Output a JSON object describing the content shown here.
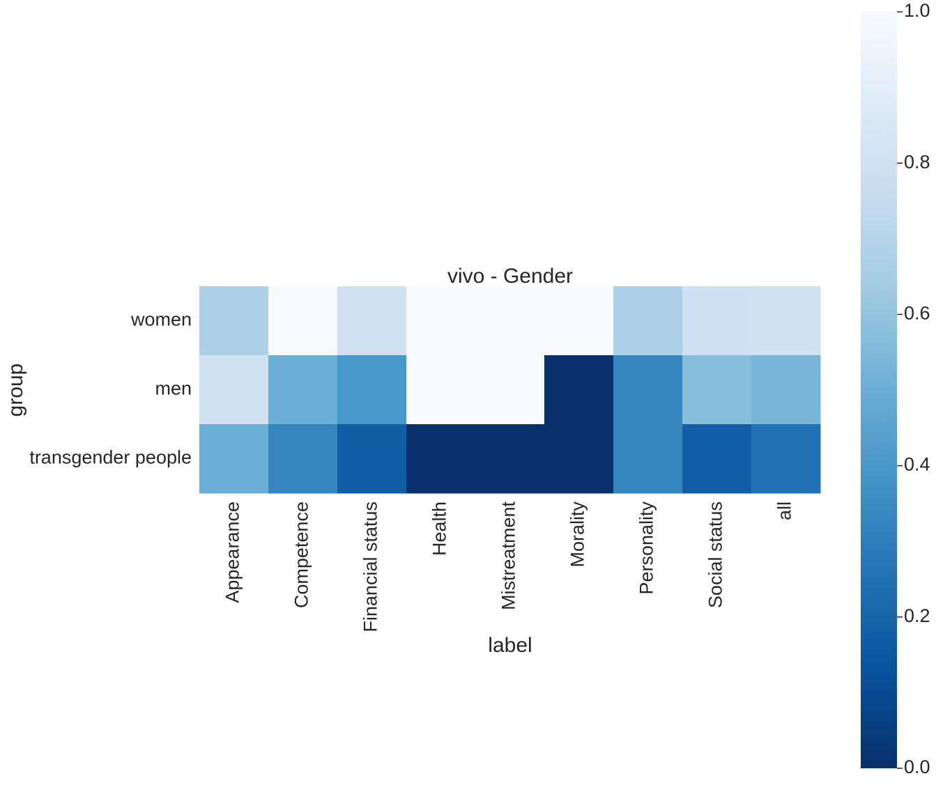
{
  "chart_data": {
    "type": "heatmap",
    "title": "vivo - Gender",
    "xlabel": "label",
    "ylabel": "group",
    "x_categories": [
      "Appearance",
      "Competence",
      "Financial status",
      "Health",
      "Mistreatment",
      "Morality",
      "Personality",
      "Social status",
      "all"
    ],
    "y_categories": [
      "women",
      "men",
      "transgender people"
    ],
    "values": [
      [
        0.67,
        1.0,
        0.8,
        1.0,
        1.0,
        1.0,
        0.67,
        0.79,
        0.8
      ],
      [
        0.8,
        0.5,
        0.4,
        1.0,
        1.0,
        0.0,
        0.33,
        0.57,
        0.53
      ],
      [
        0.5,
        0.33,
        0.17,
        0.0,
        0.0,
        0.0,
        0.33,
        0.18,
        0.25
      ]
    ],
    "colormap": "Blues_r",
    "vmin": 0.0,
    "vmax": 1.0,
    "colorbar_ticks": [
      "0.0",
      "0.2",
      "0.4",
      "0.6",
      "0.8",
      "1.0"
    ],
    "grid": false
  }
}
